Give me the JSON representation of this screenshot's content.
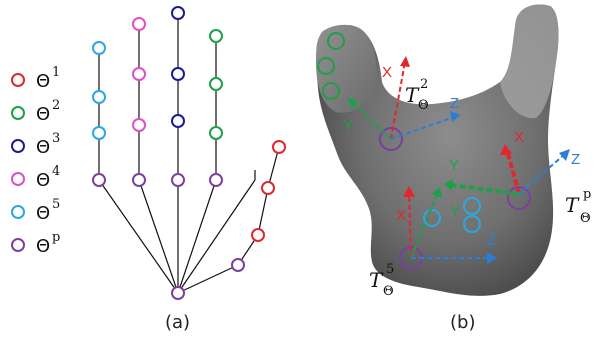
{
  "legend": [
    {
      "symbol": "Θ",
      "sup": "1",
      "color": "#e3262b"
    },
    {
      "symbol": "Θ",
      "sup": "2",
      "color": "#1ea04a"
    },
    {
      "symbol": "Θ",
      "sup": "3",
      "color": "#1a1a9a"
    },
    {
      "symbol": "Θ",
      "sup": "4",
      "color": "#e04fc4"
    },
    {
      "symbol": "Θ",
      "sup": "5",
      "color": "#29a9dd"
    },
    {
      "symbol": "Θ",
      "sup": "p",
      "color": "#7b3fa0"
    }
  ],
  "panel_a_caption": "(a)",
  "panel_b_caption": "(b)",
  "frames": {
    "t2": {
      "symbol": "T",
      "sub": "Θ",
      "sup": "2"
    },
    "t5": {
      "symbol": "T",
      "sub": "Θ",
      "sup": "5"
    },
    "tp": {
      "symbol": "T",
      "sub": "Θ",
      "sup": "p"
    }
  },
  "axis_labels": {
    "x": "X",
    "y": "Y",
    "z": "Z"
  },
  "colors": {
    "x_axis": "#e3262b",
    "y_axis": "#1ea04a",
    "z_axis": "#2a7fd4",
    "joint_edge": "#111111"
  }
}
